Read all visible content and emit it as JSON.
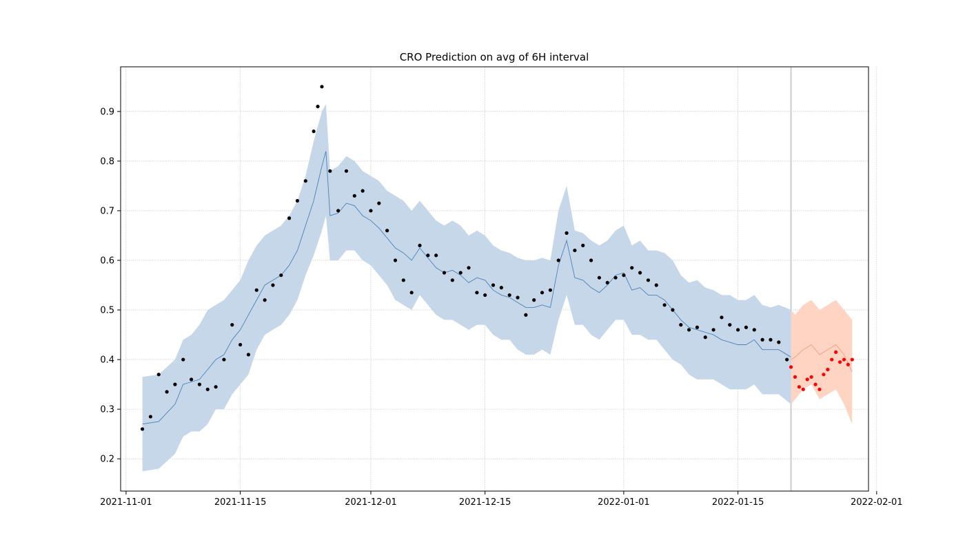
{
  "chart_data": {
    "type": "line",
    "title": "CRO Prediction on avg of 6H interval",
    "xlabel": "",
    "ylabel": "",
    "grid": true,
    "xlim": [
      "2021-10-31T08:00",
      "2022-01-31T00:00"
    ],
    "ylim": [
      0.135,
      0.99
    ],
    "x_ticks": [
      "2021-11-01",
      "2021-11-15",
      "2021-12-01",
      "2021-12-15",
      "2022-01-01",
      "2022-01-15",
      "2022-02-01"
    ],
    "y_ticks": [
      0.2,
      0.3,
      0.4,
      0.5,
      0.6,
      0.7,
      0.8,
      0.9
    ],
    "forecast_start": "2022-01-21T12:00",
    "colors": {
      "history_band": "#c5d7e8",
      "history_line": "#4a82b6",
      "history_points": "#000000",
      "forecast_band": "#ffd4c3",
      "forecast_line": "#f3a07c",
      "forecast_points": "#ff0000",
      "divider": "#c8ccd4"
    },
    "series": [
      {
        "kind": "band",
        "color": "#c5d7e8",
        "x": [
          "2021-11-03",
          "2021-11-05",
          "2021-11-07",
          "2021-11-08",
          "2021-11-09",
          "2021-11-10",
          "2021-11-11",
          "2021-11-12",
          "2021-11-13",
          "2021-11-14",
          "2021-11-15",
          "2021-11-16",
          "2021-11-17",
          "2021-11-18",
          "2021-11-19",
          "2021-11-20",
          "2021-11-21",
          "2021-11-22",
          "2021-11-23",
          "2021-11-24",
          "2021-11-25",
          "2021-11-25T12:00",
          "2021-11-26",
          "2021-11-27",
          "2021-11-28",
          "2021-11-29",
          "2021-11-30",
          "2021-12-01",
          "2021-12-02",
          "2021-12-03",
          "2021-12-04",
          "2021-12-05",
          "2021-12-06",
          "2021-12-07",
          "2021-12-08",
          "2021-12-09",
          "2021-12-10",
          "2021-12-11",
          "2021-12-12",
          "2021-12-13",
          "2021-12-14",
          "2021-12-15",
          "2021-12-16",
          "2021-12-17",
          "2021-12-18",
          "2021-12-19",
          "2021-12-20",
          "2021-12-21",
          "2021-12-22",
          "2021-12-23",
          "2021-12-24",
          "2021-12-25",
          "2021-12-26",
          "2021-12-27",
          "2021-12-28",
          "2021-12-29",
          "2021-12-30",
          "2021-12-31",
          "2022-01-01",
          "2022-01-02",
          "2022-01-03",
          "2022-01-04",
          "2022-01-05",
          "2022-01-06",
          "2022-01-07",
          "2022-01-08",
          "2022-01-09",
          "2022-01-10",
          "2022-01-11",
          "2022-01-12",
          "2022-01-13",
          "2022-01-14",
          "2022-01-15",
          "2022-01-16",
          "2022-01-17",
          "2022-01-18",
          "2022-01-19",
          "2022-01-20",
          "2022-01-21T12:00"
        ],
        "upper": [
          0.365,
          0.37,
          0.4,
          0.44,
          0.45,
          0.47,
          0.5,
          0.51,
          0.52,
          0.54,
          0.56,
          0.6,
          0.63,
          0.65,
          0.66,
          0.67,
          0.69,
          0.72,
          0.77,
          0.84,
          0.9,
          0.915,
          0.78,
          0.79,
          0.81,
          0.8,
          0.78,
          0.77,
          0.76,
          0.74,
          0.73,
          0.72,
          0.7,
          0.72,
          0.7,
          0.68,
          0.67,
          0.68,
          0.67,
          0.65,
          0.66,
          0.65,
          0.63,
          0.62,
          0.615,
          0.605,
          0.6,
          0.6,
          0.605,
          0.6,
          0.7,
          0.75,
          0.66,
          0.655,
          0.64,
          0.63,
          0.64,
          0.66,
          0.67,
          0.63,
          0.64,
          0.62,
          0.62,
          0.615,
          0.6,
          0.57,
          0.555,
          0.56,
          0.545,
          0.54,
          0.53,
          0.53,
          0.52,
          0.52,
          0.53,
          0.51,
          0.505,
          0.51,
          0.5
        ],
        "lower": [
          0.175,
          0.18,
          0.21,
          0.245,
          0.255,
          0.255,
          0.27,
          0.3,
          0.3,
          0.33,
          0.35,
          0.37,
          0.42,
          0.45,
          0.46,
          0.47,
          0.49,
          0.52,
          0.57,
          0.61,
          0.66,
          0.69,
          0.6,
          0.6,
          0.62,
          0.62,
          0.6,
          0.59,
          0.57,
          0.55,
          0.52,
          0.51,
          0.5,
          0.53,
          0.51,
          0.49,
          0.48,
          0.48,
          0.47,
          0.46,
          0.47,
          0.47,
          0.45,
          0.44,
          0.44,
          0.42,
          0.41,
          0.41,
          0.42,
          0.41,
          0.48,
          0.53,
          0.47,
          0.47,
          0.45,
          0.44,
          0.46,
          0.48,
          0.48,
          0.45,
          0.45,
          0.44,
          0.44,
          0.42,
          0.4,
          0.39,
          0.37,
          0.36,
          0.36,
          0.36,
          0.35,
          0.34,
          0.34,
          0.34,
          0.35,
          0.33,
          0.33,
          0.33,
          0.31
        ]
      },
      {
        "kind": "line",
        "color": "#4a82b6",
        "x": [
          "2021-11-03",
          "2021-11-05",
          "2021-11-07",
          "2021-11-08",
          "2021-11-09",
          "2021-11-10",
          "2021-11-11",
          "2021-11-12",
          "2021-11-13",
          "2021-11-14",
          "2021-11-15",
          "2021-11-16",
          "2021-11-17",
          "2021-11-18",
          "2021-11-19",
          "2021-11-20",
          "2021-11-21",
          "2021-11-22",
          "2021-11-23",
          "2021-11-24",
          "2021-11-25",
          "2021-11-25T12:00",
          "2021-11-26",
          "2021-11-27",
          "2021-11-28",
          "2021-11-29",
          "2021-11-30",
          "2021-12-01",
          "2021-12-02",
          "2021-12-03",
          "2021-12-04",
          "2021-12-05",
          "2021-12-06",
          "2021-12-07",
          "2021-12-08",
          "2021-12-09",
          "2021-12-10",
          "2021-12-11",
          "2021-12-12",
          "2021-12-13",
          "2021-12-14",
          "2021-12-15",
          "2021-12-16",
          "2021-12-17",
          "2021-12-18",
          "2021-12-19",
          "2021-12-20",
          "2021-12-21",
          "2021-12-22",
          "2021-12-23",
          "2021-12-24",
          "2021-12-25",
          "2021-12-26",
          "2021-12-27",
          "2021-12-28",
          "2021-12-29",
          "2021-12-30",
          "2021-12-31",
          "2022-01-01",
          "2022-01-02",
          "2022-01-03",
          "2022-01-04",
          "2022-01-05",
          "2022-01-06",
          "2022-01-07",
          "2022-01-08",
          "2022-01-09",
          "2022-01-10",
          "2022-01-11",
          "2022-01-12",
          "2022-01-13",
          "2022-01-14",
          "2022-01-15",
          "2022-01-16",
          "2022-01-17",
          "2022-01-18",
          "2022-01-19",
          "2022-01-20",
          "2022-01-21T12:00"
        ],
        "values": [
          0.27,
          0.275,
          0.31,
          0.35,
          0.355,
          0.36,
          0.38,
          0.4,
          0.41,
          0.44,
          0.46,
          0.49,
          0.52,
          0.55,
          0.56,
          0.57,
          0.59,
          0.62,
          0.67,
          0.72,
          0.79,
          0.82,
          0.69,
          0.695,
          0.715,
          0.71,
          0.69,
          0.68,
          0.665,
          0.645,
          0.625,
          0.615,
          0.6,
          0.625,
          0.605,
          0.585,
          0.575,
          0.58,
          0.57,
          0.555,
          0.565,
          0.56,
          0.54,
          0.53,
          0.525,
          0.515,
          0.505,
          0.505,
          0.51,
          0.505,
          0.59,
          0.64,
          0.565,
          0.56,
          0.545,
          0.535,
          0.55,
          0.57,
          0.575,
          0.54,
          0.545,
          0.53,
          0.53,
          0.52,
          0.5,
          0.48,
          0.465,
          0.46,
          0.455,
          0.45,
          0.44,
          0.435,
          0.43,
          0.43,
          0.44,
          0.42,
          0.42,
          0.42,
          0.405
        ]
      },
      {
        "kind": "points",
        "color": "#000000",
        "x": [
          "2021-11-03",
          "2021-11-04",
          "2021-11-05",
          "2021-11-06",
          "2021-11-07",
          "2021-11-08",
          "2021-11-09",
          "2021-11-10",
          "2021-11-11",
          "2021-11-12",
          "2021-11-13",
          "2021-11-14",
          "2021-11-15",
          "2021-11-16",
          "2021-11-17",
          "2021-11-18",
          "2021-11-19",
          "2021-11-20",
          "2021-11-21",
          "2021-11-22",
          "2021-11-23",
          "2021-11-24",
          "2021-11-24T12:00",
          "2021-11-25",
          "2021-11-26",
          "2021-11-27",
          "2021-11-28",
          "2021-11-29",
          "2021-11-30",
          "2021-12-01",
          "2021-12-02",
          "2021-12-03",
          "2021-12-04",
          "2021-12-05",
          "2021-12-06",
          "2021-12-07",
          "2021-12-08",
          "2021-12-09",
          "2021-12-10",
          "2021-12-11",
          "2021-12-12",
          "2021-12-13",
          "2021-12-14",
          "2021-12-15",
          "2021-12-16",
          "2021-12-17",
          "2021-12-18",
          "2021-12-19",
          "2021-12-20",
          "2021-12-21",
          "2021-12-22",
          "2021-12-23",
          "2021-12-24",
          "2021-12-25",
          "2021-12-26",
          "2021-12-27",
          "2021-12-28",
          "2021-12-29",
          "2021-12-30",
          "2021-12-31",
          "2022-01-01",
          "2022-01-02",
          "2022-01-03",
          "2022-01-04",
          "2022-01-05",
          "2022-01-06",
          "2022-01-07",
          "2022-01-08",
          "2022-01-09",
          "2022-01-10",
          "2022-01-11",
          "2022-01-12",
          "2022-01-13",
          "2022-01-14",
          "2022-01-15",
          "2022-01-16",
          "2022-01-17",
          "2022-01-18",
          "2022-01-19",
          "2022-01-20",
          "2022-01-21"
        ],
        "values": [
          0.26,
          0.285,
          0.37,
          0.335,
          0.35,
          0.4,
          0.36,
          0.35,
          0.34,
          0.345,
          0.4,
          0.47,
          0.43,
          0.41,
          0.54,
          0.52,
          0.55,
          0.57,
          0.685,
          0.72,
          0.76,
          0.86,
          0.91,
          0.95,
          0.78,
          0.7,
          0.78,
          0.73,
          0.74,
          0.7,
          0.715,
          0.66,
          0.6,
          0.56,
          0.535,
          0.63,
          0.61,
          0.61,
          0.575,
          0.56,
          0.575,
          0.585,
          0.535,
          0.53,
          0.55,
          0.545,
          0.53,
          0.525,
          0.49,
          0.52,
          0.535,
          0.54,
          0.6,
          0.655,
          0.62,
          0.63,
          0.6,
          0.565,
          0.555,
          0.565,
          0.57,
          0.585,
          0.575,
          0.56,
          0.55,
          0.51,
          0.5,
          0.47,
          0.46,
          0.465,
          0.445,
          0.46,
          0.485,
          0.47,
          0.46,
          0.465,
          0.46,
          0.44,
          0.44,
          0.435,
          0.4
        ]
      },
      {
        "kind": "band",
        "color": "#ffd4c3",
        "x": [
          "2022-01-21T12:00",
          "2022-01-22",
          "2022-01-23",
          "2022-01-24",
          "2022-01-25",
          "2022-01-26",
          "2022-01-27",
          "2022-01-28",
          "2022-01-29"
        ],
        "upper": [
          0.5,
          0.49,
          0.51,
          0.52,
          0.5,
          0.51,
          0.52,
          0.5,
          0.48
        ],
        "lower": [
          0.31,
          0.32,
          0.34,
          0.35,
          0.32,
          0.33,
          0.34,
          0.31,
          0.27
        ]
      },
      {
        "kind": "line",
        "color": "#f3a07c",
        "x": [
          "2022-01-21T12:00",
          "2022-01-22",
          "2022-01-23",
          "2022-01-24",
          "2022-01-25",
          "2022-01-26",
          "2022-01-27",
          "2022-01-28",
          "2022-01-29"
        ],
        "values": [
          0.4,
          0.405,
          0.42,
          0.43,
          0.41,
          0.42,
          0.43,
          0.41,
          0.375
        ]
      },
      {
        "kind": "points",
        "color": "#ff0000",
        "x": [
          "2022-01-21T12:00",
          "2022-01-22",
          "2022-01-22T12:00",
          "2022-01-23",
          "2022-01-23T12:00",
          "2022-01-24",
          "2022-01-24T12:00",
          "2022-01-25",
          "2022-01-25T12:00",
          "2022-01-26",
          "2022-01-26T12:00",
          "2022-01-27",
          "2022-01-27T12:00",
          "2022-01-28",
          "2022-01-28T12:00",
          "2022-01-29"
        ],
        "values": [
          0.385,
          0.365,
          0.345,
          0.34,
          0.36,
          0.365,
          0.35,
          0.34,
          0.37,
          0.38,
          0.4,
          0.415,
          0.395,
          0.4,
          0.39,
          0.4
        ]
      }
    ]
  }
}
